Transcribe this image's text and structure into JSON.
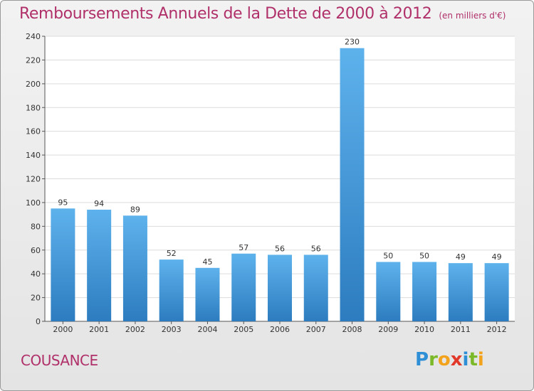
{
  "title": "Remboursements Annuels de la Dette de 2000 à 2012",
  "unit": "(en milliers d'€)",
  "place": "COUSANCE",
  "logo": {
    "parts": [
      {
        "t": "P",
        "c": "#2e8fd6"
      },
      {
        "t": "r",
        "c": "#7cb928"
      },
      {
        "t": "o",
        "c": "#f2a21b"
      },
      {
        "t": "x",
        "c": "#e2382a"
      },
      {
        "t": "i",
        "c": "#2e8fd6"
      },
      {
        "t": "t",
        "c": "#7cb928"
      },
      {
        "t": "i",
        "c": "#f2a21b"
      }
    ]
  },
  "colors": {
    "bar_light": "#5eb2ec",
    "bar_dark": "#2c7cbf",
    "title": "#b0306a",
    "grid": "#dcdcdc"
  },
  "chart_data": {
    "type": "bar",
    "categories": [
      "2000",
      "2001",
      "2002",
      "2003",
      "2004",
      "2005",
      "2006",
      "2007",
      "2008",
      "2009",
      "2010",
      "2011",
      "2012"
    ],
    "values": [
      95,
      94,
      89,
      52,
      45,
      57,
      56,
      56,
      230,
      50,
      50,
      49,
      49
    ],
    "title": "Remboursements Annuels de la Dette de 2000 à 2012",
    "ylim": [
      0,
      240
    ],
    "yticks": [
      0,
      20,
      40,
      60,
      80,
      100,
      120,
      140,
      160,
      180,
      200,
      220,
      240
    ],
    "grid": true
  }
}
